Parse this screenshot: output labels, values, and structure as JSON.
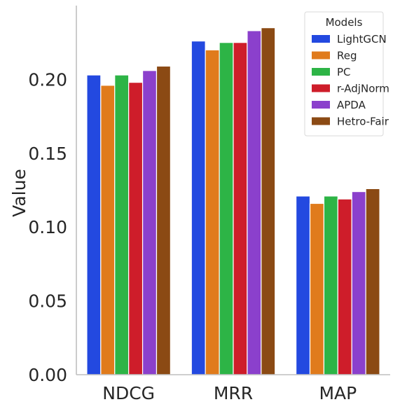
{
  "chart_data": {
    "type": "bar",
    "categories": [
      "NDCG",
      "MRR",
      "MAP"
    ],
    "ylabel": "Value",
    "xlabel": "",
    "ylim": [
      0,
      0.25
    ],
    "yticks": [
      "0.00",
      "0.05",
      "0.10",
      "0.15",
      "0.20"
    ],
    "ytick_values": [
      0,
      0.05,
      0.1,
      0.15,
      0.2
    ],
    "grid": false,
    "legend_title": "Models",
    "legend_position": "top-right",
    "series": [
      {
        "name": "LightGCN",
        "color": "#2349e0",
        "values": [
          0.203,
          0.226,
          0.121
        ]
      },
      {
        "name": "Reg",
        "color": "#e07b1c",
        "values": [
          0.196,
          0.22,
          0.116
        ]
      },
      {
        "name": "PC",
        "color": "#2db446",
        "values": [
          0.203,
          0.225,
          0.121
        ]
      },
      {
        "name": "r-AdjNorm",
        "color": "#ce1d2a",
        "values": [
          0.198,
          0.225,
          0.119
        ]
      },
      {
        "name": "APDA",
        "color": "#8b40cc",
        "values": [
          0.206,
          0.233,
          0.124
        ]
      },
      {
        "name": "Hetro-Fair",
        "color": "#8b4a14",
        "values": [
          0.209,
          0.235,
          0.126
        ]
      }
    ]
  }
}
